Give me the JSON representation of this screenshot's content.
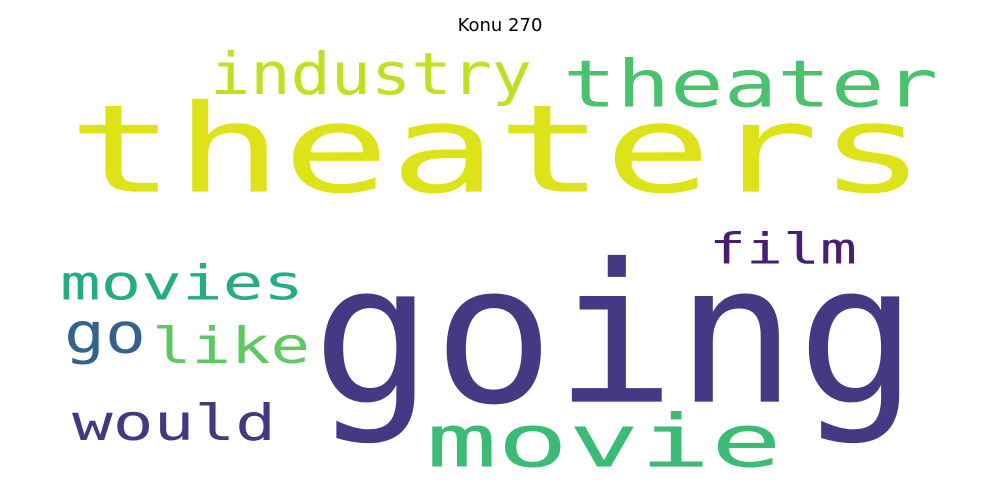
{
  "title": "Konu 270",
  "words": [
    {
      "id": "theaters",
      "text": "theaters",
      "color": "#dde318"
    },
    {
      "id": "going",
      "text": "going",
      "color": "#443983"
    },
    {
      "id": "movie",
      "text": "movie",
      "color": "#3bbb75"
    },
    {
      "id": "theater",
      "text": "theater",
      "color": "#4ac16d"
    },
    {
      "id": "industry",
      "text": "industry",
      "color": "#c2df23"
    },
    {
      "id": "film",
      "text": "film",
      "color": "#481f70"
    },
    {
      "id": "movies",
      "text": "movies",
      "color": "#25ac82"
    },
    {
      "id": "go",
      "text": "go",
      "color": "#33638d"
    },
    {
      "id": "like",
      "text": "like",
      "color": "#5ec962"
    },
    {
      "id": "would",
      "text": "would",
      "color": "#453781"
    }
  ]
}
